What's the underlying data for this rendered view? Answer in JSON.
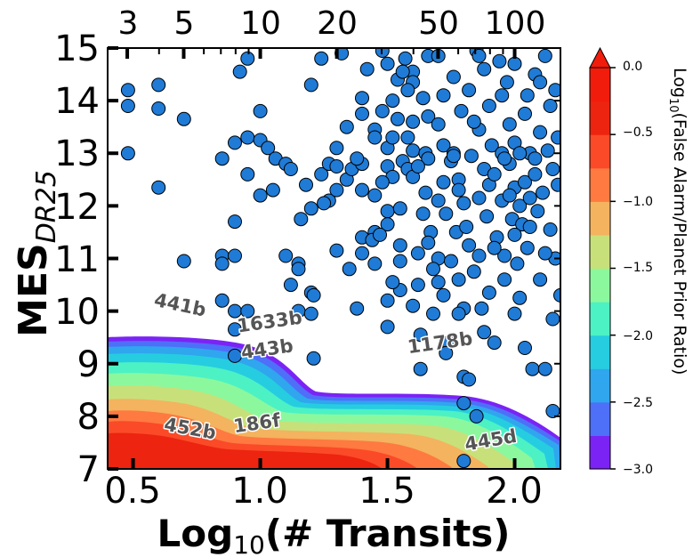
{
  "chart_data": {
    "type": "scatter",
    "xlabel_prefix": "Log",
    "xlabel_sub": "10",
    "xlabel_suffix": "(# Transits)",
    "ylabel_main": "MES",
    "ylabel_sub": "DR25",
    "xlim": [
      0.4,
      2.18
    ],
    "ylim": [
      7,
      15
    ],
    "xticks": [
      "0.5",
      "1.0",
      "1.5",
      "2.0"
    ],
    "yticks": [
      "7",
      "8",
      "9",
      "10",
      "11",
      "12",
      "13",
      "14",
      "15"
    ],
    "top_axis_ticks": [
      "3",
      "5",
      "10",
      "20",
      "50",
      "100"
    ],
    "colorbar": {
      "label_prefix": "Log",
      "label_sub": "10",
      "label_suffix": "(False Alarm/Planet Prior Ratio)",
      "ticks": [
        "0.0",
        "−0.5",
        "−1.0",
        "−1.5",
        "−2.0",
        "−2.5",
        "−3.0"
      ],
      "range": [
        -3.0,
        0.0
      ],
      "extend": "max",
      "colors": [
        "#7b23f5",
        "#4e6ff8",
        "#2fa6ee",
        "#26cde0",
        "#4cf2c4",
        "#8cf89e",
        "#c8e07a",
        "#f4b35e",
        "#fe7a40",
        "#fb4a28",
        "#ec2410",
        "#f21c0c"
      ]
    },
    "points_color": "#1f7bd6",
    "annotations": [
      {
        "text": "441b",
        "x": 0.68,
        "y": 10.0,
        "rotation": 12
      },
      {
        "text": "1633b",
        "x": 1.04,
        "y": 9.68,
        "rotation": -8
      },
      {
        "text": "443b",
        "x": 1.03,
        "y": 9.16,
        "rotation": -8
      },
      {
        "text": "1178b",
        "x": 1.71,
        "y": 9.28,
        "rotation": -8
      },
      {
        "text": "452b",
        "x": 0.72,
        "y": 7.65,
        "rotation": 10
      },
      {
        "text": "186f",
        "x": 0.99,
        "y": 7.75,
        "rotation": -8
      },
      {
        "text": "445d",
        "x": 1.91,
        "y": 7.43,
        "rotation": -10
      }
    ],
    "points": [
      [
        0.48,
        14.2
      ],
      [
        0.48,
        13.9
      ],
      [
        0.48,
        13.0
      ],
      [
        0.6,
        14.3
      ],
      [
        0.6,
        13.85
      ],
      [
        0.6,
        12.35
      ],
      [
        0.7,
        13.65
      ],
      [
        0.7,
        10.95
      ],
      [
        0.85,
        12.9
      ],
      [
        0.85,
        11.05
      ],
      [
        0.85,
        10.9
      ],
      [
        0.85,
        10.2
      ],
      [
        0.9,
        13.2
      ],
      [
        0.9,
        11.7
      ],
      [
        0.9,
        11.05
      ],
      [
        0.9,
        10.0
      ],
      [
        0.9,
        9.65
      ],
      [
        0.9,
        9.15
      ],
      [
        0.92,
        14.55
      ],
      [
        0.95,
        14.8
      ],
      [
        0.95,
        13.3
      ],
      [
        0.95,
        12.6
      ],
      [
        0.95,
        10.0
      ],
      [
        1.0,
        13.8
      ],
      [
        1.0,
        13.25
      ],
      [
        1.0,
        12.2
      ],
      [
        1.03,
        13.1
      ],
      [
        1.06,
        12.9
      ],
      [
        1.1,
        12.8
      ],
      [
        1.1,
        11.05
      ],
      [
        1.12,
        10.5
      ],
      [
        1.15,
        10.9
      ],
      [
        1.15,
        10.8
      ],
      [
        1.15,
        10.0
      ],
      [
        1.18,
        12.4
      ],
      [
        1.2,
        14.3
      ],
      [
        1.2,
        11.95
      ],
      [
        1.2,
        10.35
      ],
      [
        1.2,
        9.95
      ],
      [
        1.21,
        10.3
      ],
      [
        1.21,
        9.1
      ],
      [
        1.24,
        14.8
      ],
      [
        1.24,
        12.6
      ],
      [
        1.27,
        12.1
      ],
      [
        1.27,
        12.8
      ],
      [
        1.3,
        12.75
      ],
      [
        1.3,
        12.3
      ],
      [
        1.3,
        11.15
      ],
      [
        1.32,
        14.9
      ],
      [
        1.34,
        12.5
      ],
      [
        1.36,
        12.7
      ],
      [
        1.38,
        10.05
      ],
      [
        1.4,
        14.05
      ],
      [
        1.4,
        13.75
      ],
      [
        1.4,
        12.8
      ],
      [
        1.4,
        12.3
      ],
      [
        1.4,
        11.1
      ],
      [
        1.42,
        14.6
      ],
      [
        1.45,
        13.45
      ],
      [
        1.45,
        13.3
      ],
      [
        1.45,
        12.2
      ],
      [
        1.45,
        11.5
      ],
      [
        1.48,
        14.95
      ],
      [
        1.48,
        13.8
      ],
      [
        1.5,
        14.7
      ],
      [
        1.5,
        13.1
      ],
      [
        1.5,
        12.75
      ],
      [
        1.5,
        11.9
      ],
      [
        1.5,
        11.65
      ],
      [
        1.5,
        9.7
      ],
      [
        1.52,
        14.0
      ],
      [
        1.52,
        13.3
      ],
      [
        1.52,
        12.55
      ],
      [
        1.54,
        14.4
      ],
      [
        1.54,
        13.65
      ],
      [
        1.55,
        11.95
      ],
      [
        1.55,
        11.25
      ],
      [
        1.55,
        10.95
      ],
      [
        1.55,
        10.4
      ],
      [
        1.56,
        12.85
      ],
      [
        1.57,
        14.8
      ],
      [
        1.58,
        13.3
      ],
      [
        1.58,
        12.7
      ],
      [
        1.6,
        14.55
      ],
      [
        1.6,
        14.35
      ],
      [
        1.6,
        13.6
      ],
      [
        1.6,
        13.05
      ],
      [
        1.6,
        12.55
      ],
      [
        1.62,
        11.1
      ],
      [
        1.62,
        10.5
      ],
      [
        1.63,
        8.9
      ],
      [
        1.63,
        9.55
      ],
      [
        1.64,
        14.05
      ],
      [
        1.65,
        13.0
      ],
      [
        1.65,
        12.25
      ],
      [
        1.66,
        12.9
      ],
      [
        1.66,
        13.7
      ],
      [
        1.66,
        14.85
      ],
      [
        1.67,
        11.5
      ],
      [
        1.68,
        9.95
      ],
      [
        1.7,
        13.55
      ],
      [
        1.7,
        12.1
      ],
      [
        1.7,
        11.0
      ],
      [
        1.7,
        10.55
      ],
      [
        1.72,
        14.1
      ],
      [
        1.72,
        13.15
      ],
      [
        1.72,
        12.45
      ],
      [
        1.73,
        11.85
      ],
      [
        1.74,
        9.4
      ],
      [
        1.75,
        12.85
      ],
      [
        1.75,
        10.95
      ],
      [
        1.76,
        14.45
      ],
      [
        1.76,
        13.0
      ],
      [
        1.77,
        11.5
      ],
      [
        1.78,
        12.5
      ],
      [
        1.78,
        12.3
      ],
      [
        1.78,
        10.6
      ],
      [
        1.79,
        13.8
      ],
      [
        1.8,
        12.05
      ],
      [
        1.8,
        10.05
      ],
      [
        1.8,
        8.25
      ],
      [
        1.8,
        7.15
      ],
      [
        1.81,
        11.6
      ],
      [
        1.82,
        14.2
      ],
      [
        1.82,
        11.25
      ],
      [
        1.83,
        12.95
      ],
      [
        1.84,
        10.75
      ],
      [
        1.85,
        14.95
      ],
      [
        1.86,
        13.45
      ],
      [
        1.86,
        12.15
      ],
      [
        1.86,
        11.05
      ],
      [
        1.88,
        12.7
      ],
      [
        1.88,
        14.6
      ],
      [
        1.88,
        9.6
      ],
      [
        1.89,
        11.8
      ],
      [
        1.9,
        13.9
      ],
      [
        1.9,
        12.4
      ],
      [
        1.9,
        10.35
      ],
      [
        1.91,
        13.15
      ],
      [
        1.92,
        12.6
      ],
      [
        1.93,
        11.4
      ],
      [
        1.94,
        14.75
      ],
      [
        1.95,
        13.0
      ],
      [
        1.95,
        12.1
      ],
      [
        1.96,
        11.05
      ],
      [
        1.96,
        10.6
      ],
      [
        1.97,
        14.35
      ],
      [
        1.98,
        13.55
      ],
      [
        1.98,
        12.8
      ],
      [
        1.99,
        11.75
      ],
      [
        2.0,
        14.7
      ],
      [
        2.0,
        13.2
      ],
      [
        2.0,
        12.35
      ],
      [
        2.01,
        10.9
      ],
      [
        2.02,
        12.0
      ],
      [
        2.02,
        10.25
      ],
      [
        2.03,
        11.65
      ],
      [
        2.04,
        13.75
      ],
      [
        2.04,
        12.45
      ],
      [
        2.05,
        14.1
      ],
      [
        2.05,
        11.2
      ],
      [
        2.06,
        13.0
      ],
      [
        2.06,
        12.15
      ],
      [
        2.07,
        8.9
      ],
      [
        2.08,
        14.5
      ],
      [
        2.08,
        12.6
      ],
      [
        2.09,
        11.9
      ],
      [
        2.1,
        13.4
      ],
      [
        2.1,
        10.6
      ],
      [
        2.11,
        12.25
      ],
      [
        2.12,
        8.9
      ],
      [
        2.12,
        14.85
      ],
      [
        2.13,
        13.05
      ],
      [
        2.14,
        11.55
      ],
      [
        2.15,
        12.7
      ],
      [
        2.15,
        9.85
      ],
      [
        2.16,
        14.2
      ],
      [
        2.16,
        11.0
      ],
      [
        2.17,
        13.3
      ],
      [
        2.17,
        12.4
      ],
      [
        2.18,
        10.3
      ],
      [
        1.56,
        14.55
      ],
      [
        1.68,
        10.8
      ],
      [
        1.78,
        9.95
      ],
      [
        1.85,
        8.0
      ],
      [
        1.92,
        9.4
      ],
      [
        2.0,
        9.95
      ],
      [
        2.04,
        9.3
      ],
      [
        1.98,
        12.2
      ],
      [
        1.64,
        11.85
      ],
      [
        1.72,
        10.3
      ],
      [
        1.87,
        10.05
      ],
      [
        1.73,
        9.2
      ],
      [
        1.8,
        8.75
      ],
      [
        1.82,
        8.7
      ],
      [
        2.15,
        8.1
      ],
      [
        1.45,
        10.9
      ],
      [
        1.5,
        10.2
      ],
      [
        1.4,
        11.4
      ],
      [
        1.35,
        10.8
      ],
      [
        1.25,
        12.05
      ],
      [
        1.3,
        13.1
      ],
      [
        1.12,
        12.7
      ],
      [
        1.16,
        11.75
      ],
      [
        1.05,
        12.3
      ],
      [
        1.95,
        14.1
      ],
      [
        2.1,
        14.35
      ],
      [
        2.02,
        13.0
      ],
      [
        2.14,
        13.9
      ],
      [
        1.96,
        12.9
      ],
      [
        2.06,
        11.6
      ],
      [
        1.84,
        13.6
      ],
      [
        1.7,
        14.85
      ],
      [
        1.58,
        14.2
      ],
      [
        1.62,
        12.75
      ],
      [
        1.76,
        12.95
      ],
      [
        1.66,
        11.3
      ],
      [
        1.92,
        11.2
      ],
      [
        2.08,
        12.9
      ],
      [
        2.12,
        11.1
      ],
      [
        2.0,
        11.45
      ],
      [
        1.86,
        14.85
      ],
      [
        1.48,
        12.45
      ],
      [
        1.52,
        10.55
      ],
      [
        1.6,
        10.1
      ],
      [
        1.44,
        11.35
      ],
      [
        1.38,
        12.9
      ],
      [
        1.34,
        13.5
      ],
      [
        1.47,
        11.45
      ]
    ]
  }
}
